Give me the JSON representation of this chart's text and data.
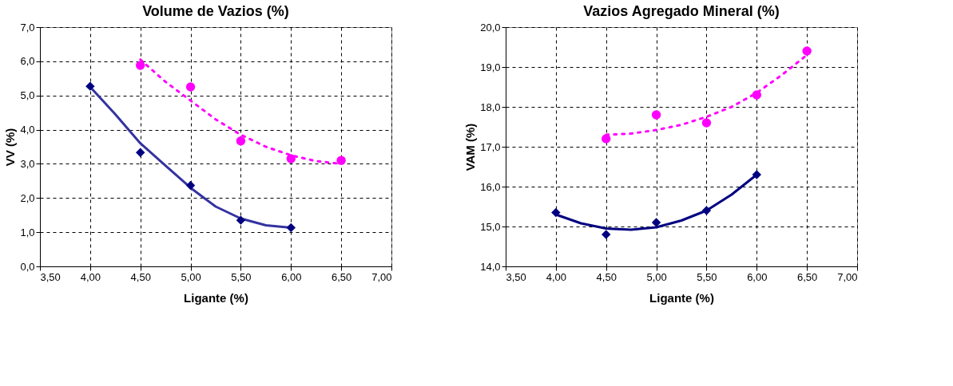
{
  "chart_data": [
    {
      "type": "scatter",
      "title": "Volume de Vazios (%)",
      "xlabel": "Ligante (%)",
      "ylabel": "VV (%)",
      "grid": true,
      "xlim": [
        3.5,
        7.0
      ],
      "xticks": [
        {
          "value": 3.5,
          "label": "3,50"
        },
        {
          "value": 4.0,
          "label": "4,00"
        },
        {
          "value": 4.5,
          "label": "4,50"
        },
        {
          "value": 5.0,
          "label": "5,00"
        },
        {
          "value": 5.5,
          "label": "5,50"
        },
        {
          "value": 6.0,
          "label": "6,00"
        },
        {
          "value": 6.5,
          "label": "6,50"
        },
        {
          "value": 7.0,
          "label": "7,00"
        }
      ],
      "ylim": [
        0,
        7
      ],
      "yticks": [
        {
          "value": 0,
          "label": "0,0"
        },
        {
          "value": 1,
          "label": "1,0"
        },
        {
          "value": 2,
          "label": "2,0"
        },
        {
          "value": 3,
          "label": "3,0"
        },
        {
          "value": 4,
          "label": "4,0"
        },
        {
          "value": 5,
          "label": "5,0"
        },
        {
          "value": 6,
          "label": "6,0"
        },
        {
          "value": 7,
          "label": "7,0"
        }
      ],
      "series": [
        {
          "type": "line",
          "color": "#3333a0",
          "line_style": "solid",
          "marker": "none",
          "x": [
            4.0,
            4.25,
            4.5,
            4.75,
            5.0,
            5.25,
            5.5,
            5.75,
            6.0
          ],
          "values": [
            5.25,
            4.45,
            3.6,
            2.95,
            2.3,
            1.75,
            1.4,
            1.2,
            1.13
          ]
        },
        {
          "type": "line",
          "color": "#ff00ff",
          "line_style": "dotted",
          "marker": "none",
          "x": [
            4.5,
            4.75,
            5.0,
            5.25,
            5.5,
            5.75,
            6.0,
            6.25,
            6.5
          ],
          "values": [
            6.05,
            5.4,
            4.85,
            4.3,
            3.85,
            3.5,
            3.25,
            3.08,
            3.0
          ]
        },
        {
          "type": "scatter",
          "color": "#000080",
          "marker": "diamond",
          "x": [
            4.0,
            4.5,
            5.0,
            5.5,
            6.0
          ],
          "values": [
            5.27,
            3.33,
            2.37,
            1.35,
            1.13
          ]
        },
        {
          "type": "scatter",
          "color": "#ff00ff",
          "marker": "circle",
          "x": [
            4.5,
            5.0,
            5.5,
            6.0,
            6.5
          ],
          "values": [
            5.88,
            5.25,
            3.67,
            3.15,
            3.1
          ]
        }
      ]
    },
    {
      "type": "scatter",
      "title": "Vazios Agregado Mineral (%)",
      "xlabel": "Ligante (%)",
      "ylabel": "VAM (%)",
      "grid": true,
      "xlim": [
        3.5,
        7.0
      ],
      "xticks": [
        {
          "value": 3.5,
          "label": "3,50"
        },
        {
          "value": 4.0,
          "label": "4,00"
        },
        {
          "value": 4.5,
          "label": "4,50"
        },
        {
          "value": 5.0,
          "label": "5,00"
        },
        {
          "value": 5.5,
          "label": "5,50"
        },
        {
          "value": 6.0,
          "label": "6,00"
        },
        {
          "value": 6.5,
          "label": "6,50"
        },
        {
          "value": 7.0,
          "label": "7,00"
        }
      ],
      "ylim": [
        14,
        20
      ],
      "yticks": [
        {
          "value": 14,
          "label": "14,0"
        },
        {
          "value": 15,
          "label": "15,0"
        },
        {
          "value": 16,
          "label": "16,0"
        },
        {
          "value": 17,
          "label": "17,0"
        },
        {
          "value": 18,
          "label": "18,0"
        },
        {
          "value": 19,
          "label": "19,0"
        },
        {
          "value": 20,
          "label": "20,0"
        }
      ],
      "series": [
        {
          "type": "line",
          "color": "#000080",
          "line_style": "solid",
          "marker": "none",
          "x": [
            4.0,
            4.25,
            4.5,
            4.75,
            5.0,
            5.25,
            5.5,
            5.75,
            6.0
          ],
          "values": [
            15.3,
            15.08,
            14.95,
            14.92,
            14.98,
            15.15,
            15.4,
            15.8,
            16.3
          ]
        },
        {
          "type": "line",
          "color": "#ff00ff",
          "line_style": "dotted",
          "marker": "none",
          "x": [
            4.5,
            4.75,
            5.0,
            5.25,
            5.5,
            5.75,
            6.0,
            6.25,
            6.5
          ],
          "values": [
            17.3,
            17.33,
            17.42,
            17.55,
            17.75,
            18.0,
            18.35,
            18.8,
            19.3
          ]
        },
        {
          "type": "scatter",
          "color": "#000080",
          "marker": "diamond",
          "x": [
            4.0,
            4.5,
            5.0,
            5.5,
            6.0
          ],
          "values": [
            15.35,
            14.8,
            15.1,
            15.4,
            16.3
          ]
        },
        {
          "type": "scatter",
          "color": "#ff00ff",
          "marker": "circle",
          "x": [
            4.5,
            5.0,
            5.5,
            6.0,
            6.5
          ],
          "values": [
            17.2,
            17.8,
            17.6,
            18.3,
            19.4
          ]
        }
      ]
    }
  ]
}
